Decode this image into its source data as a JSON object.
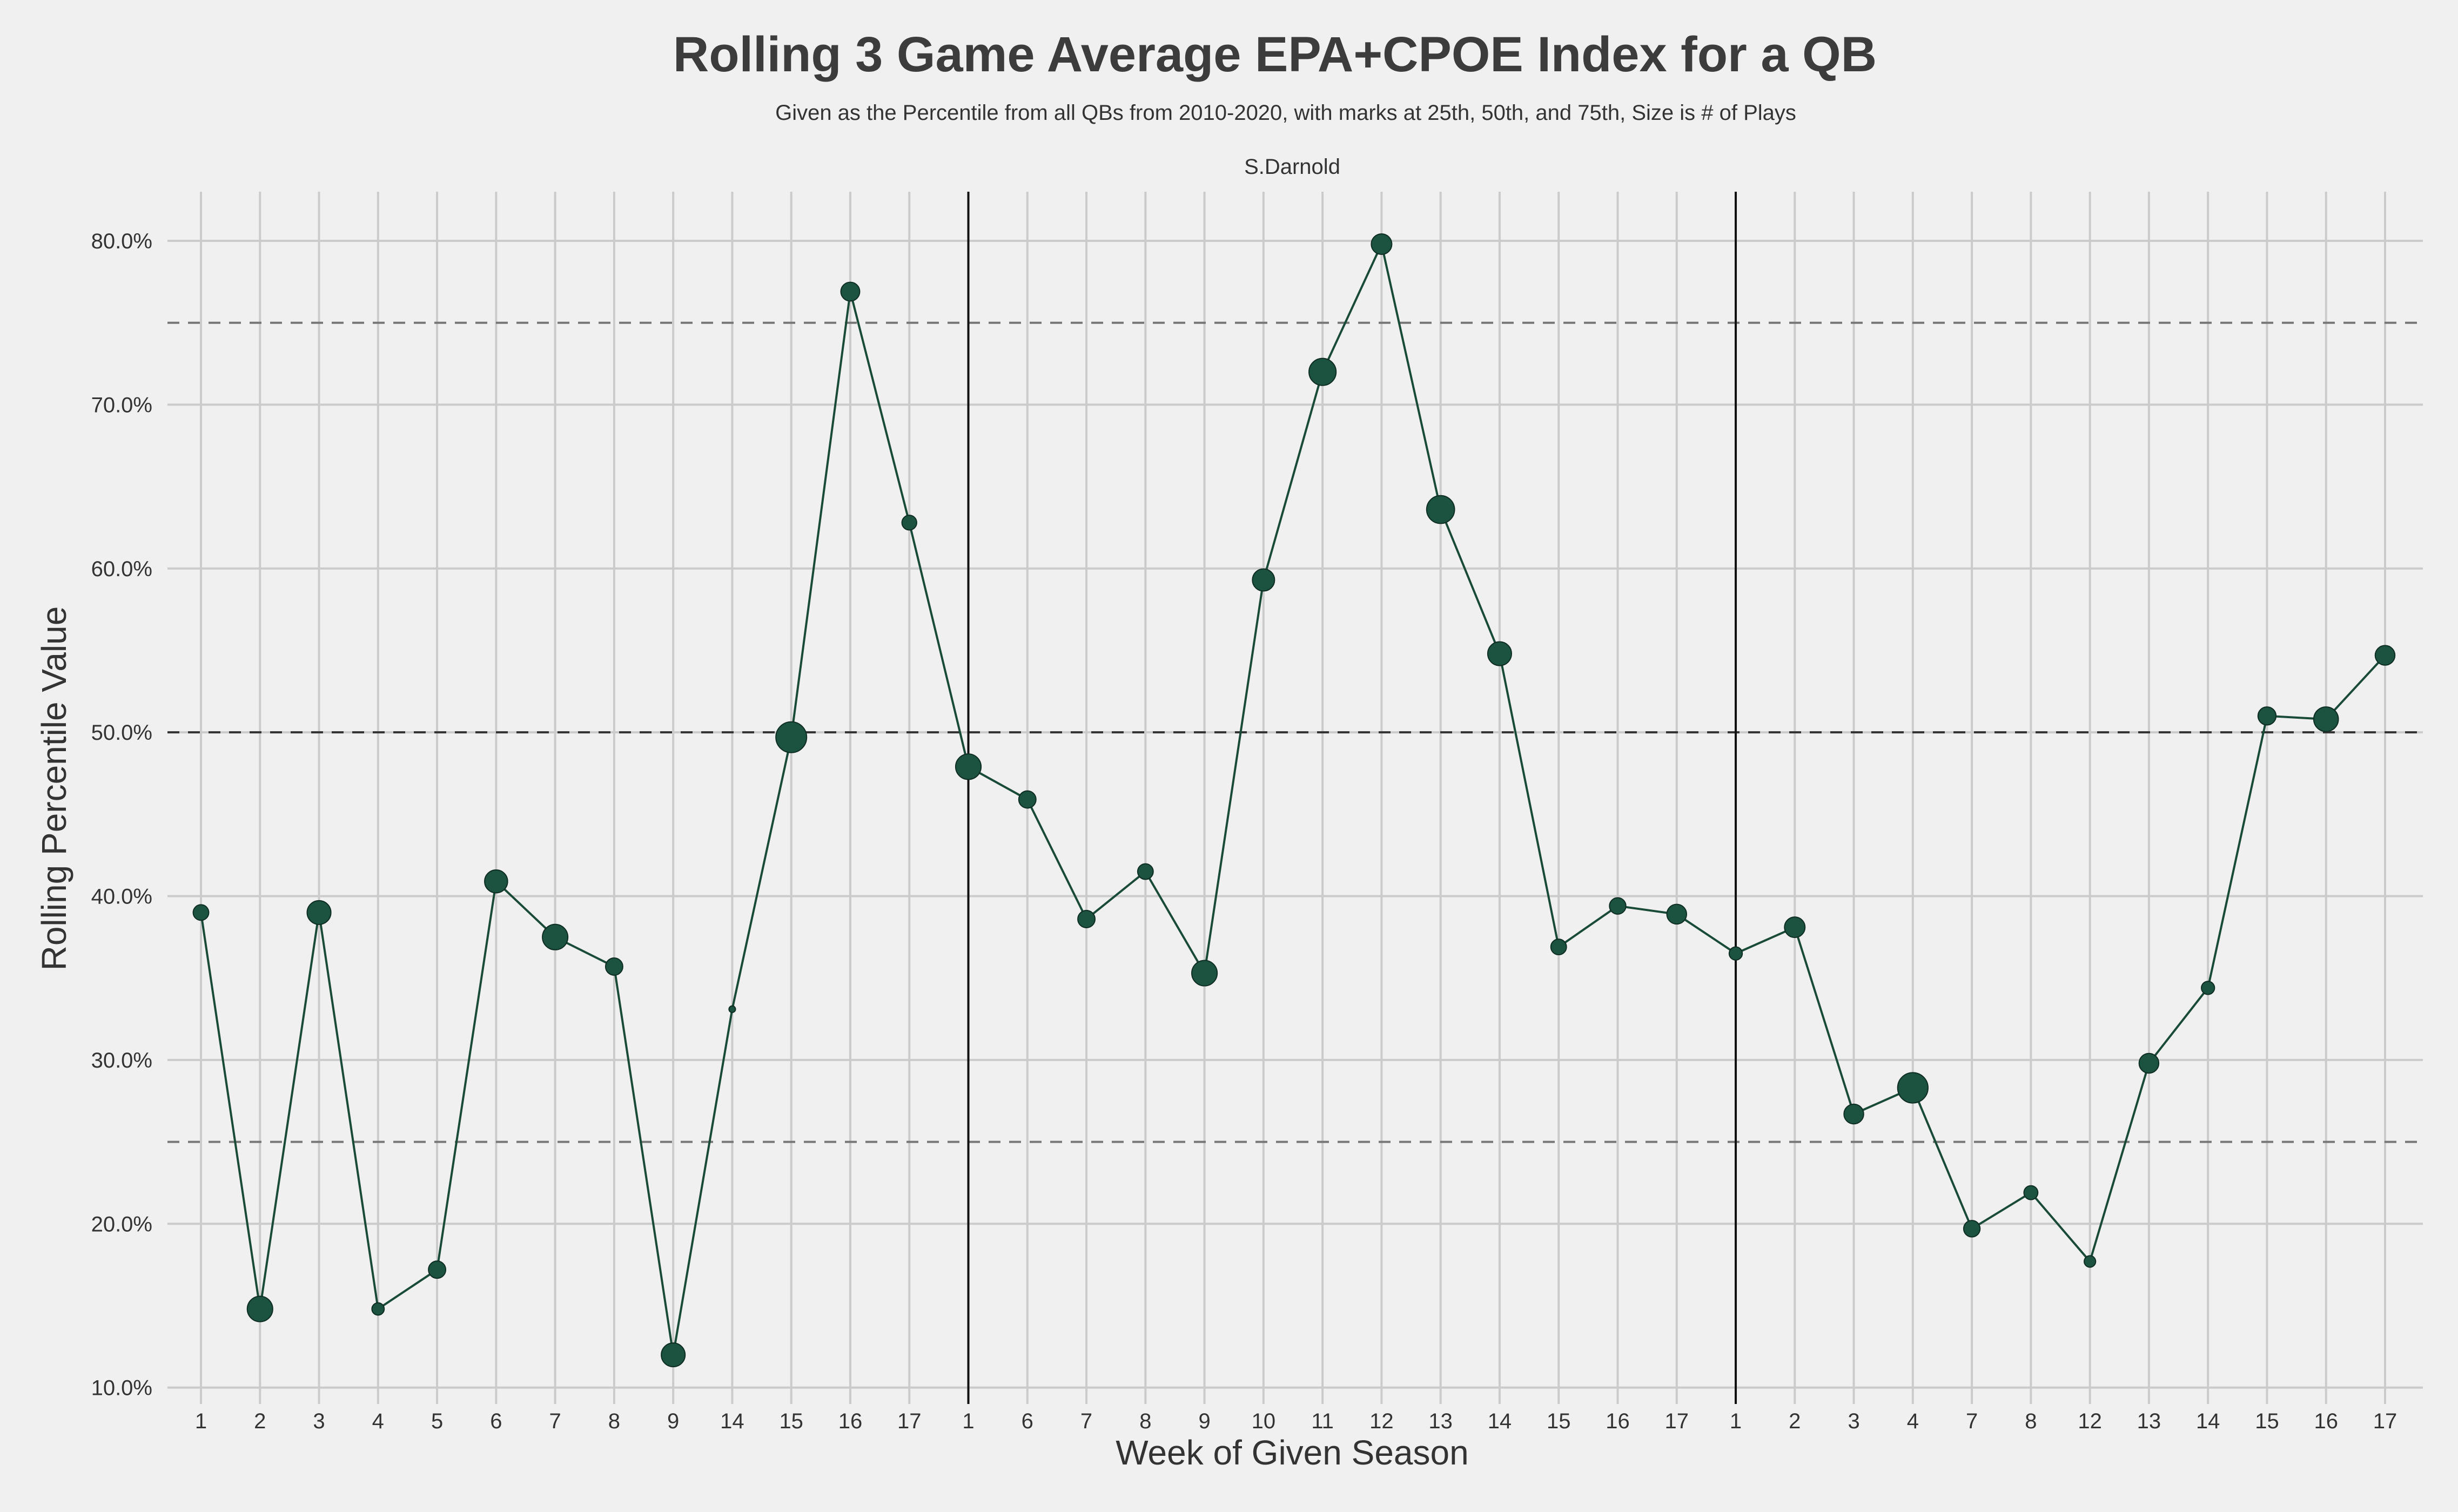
{
  "chart_data": {
    "type": "line",
    "title": "Rolling 3 Game Average EPA+CPOE Index for a QB",
    "subtitle": "Given as the Percentile from all QBs from 2010-2020, with marks at 25th, 50th, and 75th, Size is # of Plays",
    "panel_label": "S.Darnold",
    "xlabel": "Week of Given Season",
    "ylabel": "Rolling Percentile Value",
    "ylim": [
      9.0,
      83.0
    ],
    "yticks": [
      "10.0%",
      "20.0%",
      "30.0%",
      "40.0%",
      "50.0%",
      "60.0%",
      "70.0%",
      "80.0%"
    ],
    "ytick_values": [
      10,
      20,
      30,
      40,
      50,
      60,
      70,
      80
    ],
    "reference_lines": [
      25,
      50,
      75
    ],
    "season_boundaries_after_index": [
      12,
      25
    ],
    "grid": true,
    "colors": {
      "line": "#1a4a38",
      "marker": "#1b5240",
      "background": "#f0f0f0",
      "grid": "#cbcbcb"
    },
    "categories": [
      "1",
      "2",
      "3",
      "4",
      "5",
      "6",
      "7",
      "8",
      "9",
      "14",
      "15",
      "16",
      "17",
      "1",
      "6",
      "7",
      "8",
      "9",
      "10",
      "11",
      "12",
      "13",
      "14",
      "15",
      "16",
      "17",
      "1",
      "2",
      "3",
      "4",
      "7",
      "8",
      "12",
      "13",
      "14",
      "15",
      "16",
      "17"
    ],
    "values": [
      39.0,
      14.8,
      39.0,
      14.8,
      17.2,
      40.9,
      37.5,
      35.7,
      12.0,
      33.1,
      49.7,
      76.9,
      62.8,
      47.9,
      45.9,
      38.6,
      41.5,
      35.3,
      59.3,
      72.0,
      79.8,
      63.6,
      54.8,
      36.9,
      39.4,
      38.9,
      36.5,
      38.1,
      26.7,
      28.3,
      19.7,
      21.9,
      17.7,
      29.8,
      34.4,
      51.0,
      50.8,
      54.7
    ],
    "plays": [
      38,
      62,
      58,
      30,
      42,
      56,
      62,
      42,
      58,
      16,
      75,
      46,
      36,
      62,
      42,
      42,
      38,
      62,
      54,
      66,
      50,
      68,
      58,
      38,
      40,
      48,
      32,
      50,
      48,
      74,
      40,
      34,
      28,
      48,
      32,
      44,
      60,
      48
    ]
  }
}
